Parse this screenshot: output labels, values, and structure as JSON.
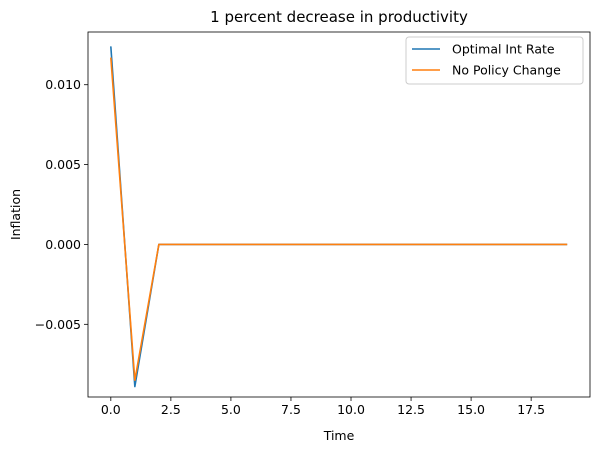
{
  "chart_data": {
    "type": "line",
    "title": "1 percent decrease in productivity",
    "xlabel": "Time",
    "ylabel": "Inflation",
    "xlim": [
      -0.95,
      19.95
    ],
    "ylim": [
      -0.00955,
      0.0133
    ],
    "xticks": [
      0,
      2.5,
      5,
      7.5,
      10,
      12.5,
      15,
      17.5
    ],
    "xtick_labels": [
      "0.0",
      "2.5",
      "5.0",
      "7.5",
      "10.0",
      "12.5",
      "15.0",
      "17.5"
    ],
    "yticks": [
      0.01,
      0.005,
      0.0,
      -0.005
    ],
    "ytick_labels": [
      "0.010",
      "0.005",
      "0.000",
      "−0.005"
    ],
    "grid": false,
    "legend_position": "top-right",
    "x": [
      0,
      1,
      2,
      3,
      4,
      5,
      6,
      7,
      8,
      9,
      10,
      11,
      12,
      13,
      14,
      15,
      16,
      17,
      18,
      19
    ],
    "series": [
      {
        "name": "Optimal Int Rate",
        "color": "#1f77b4",
        "values": [
          0.0124,
          -0.0089,
          0,
          0,
          0,
          0,
          0,
          0,
          0,
          0,
          0,
          0,
          0,
          0,
          0,
          0,
          0,
          0,
          0,
          0
        ]
      },
      {
        "name": "No Policy Change",
        "color": "#ff7f0e",
        "values": [
          0.0117,
          -0.0085,
          0,
          0,
          0,
          0,
          0,
          0,
          0,
          0,
          0,
          0,
          0,
          0,
          0,
          0,
          0,
          0,
          0,
          0
        ]
      }
    ]
  }
}
